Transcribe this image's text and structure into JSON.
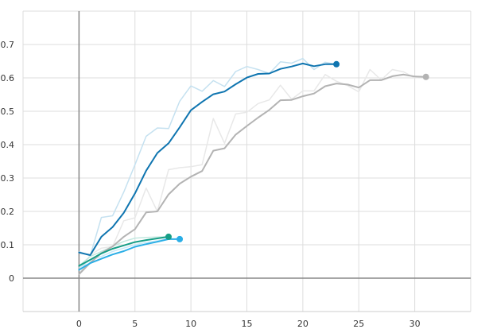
{
  "chart_data": {
    "type": "line",
    "title": "",
    "xlabel": "",
    "ylabel": "",
    "xlim": [
      -5,
      35
    ],
    "ylim": [
      -0.1,
      0.8
    ],
    "x_ticks": [
      0,
      5,
      10,
      15,
      20,
      25,
      30
    ],
    "y_ticks": [
      0,
      0.1,
      0.2,
      0.3,
      0.4,
      0.5,
      0.6,
      0.7
    ],
    "grid": true,
    "legend": "none",
    "series": [
      {
        "color": "#0f75b0",
        "raw_color": "#c5e1f0",
        "x": [
          0,
          1,
          2,
          3,
          4,
          5,
          6,
          7,
          8,
          9,
          10,
          11,
          12,
          13,
          14,
          15,
          16,
          17,
          18,
          19,
          20,
          21,
          22,
          23
        ],
        "values": [
          0.077,
          0.069,
          0.124,
          0.153,
          0.196,
          0.254,
          0.322,
          0.375,
          0.404,
          0.452,
          0.503,
          0.528,
          0.551,
          0.559,
          0.581,
          0.601,
          0.612,
          0.613,
          0.627,
          0.634,
          0.643,
          0.635,
          0.641,
          0.641
        ],
        "raw_values": [
          0.08,
          0.067,
          0.182,
          0.187,
          0.258,
          0.34,
          0.425,
          0.45,
          0.448,
          0.53,
          0.576,
          0.56,
          0.592,
          0.574,
          0.619,
          0.634,
          0.625,
          0.613,
          0.648,
          0.644,
          0.658,
          0.625,
          0.647,
          0.64
        ]
      },
      {
        "color": "#b3b3b3",
        "raw_color": "#e8e8e8",
        "x": [
          0,
          1,
          2,
          3,
          4,
          5,
          6,
          7,
          8,
          9,
          10,
          11,
          12,
          13,
          14,
          15,
          16,
          17,
          18,
          19,
          20,
          21,
          22,
          23,
          24,
          25,
          26,
          27,
          28,
          29,
          30,
          31
        ],
        "values": [
          0.012,
          0.046,
          0.075,
          0.095,
          0.124,
          0.147,
          0.197,
          0.2,
          0.251,
          0.283,
          0.304,
          0.321,
          0.382,
          0.389,
          0.43,
          0.456,
          0.481,
          0.504,
          0.533,
          0.534,
          0.545,
          0.553,
          0.575,
          0.583,
          0.58,
          0.571,
          0.593,
          0.593,
          0.605,
          0.61,
          0.604,
          0.603
        ],
        "raw_values": [
          0.01,
          0.07,
          0.09,
          0.095,
          0.172,
          0.181,
          0.27,
          0.2,
          0.325,
          0.331,
          0.334,
          0.34,
          0.478,
          0.404,
          0.492,
          0.497,
          0.523,
          0.534,
          0.578,
          0.536,
          0.561,
          0.561,
          0.61,
          0.59,
          0.577,
          0.558,
          0.625,
          0.594,
          0.625,
          0.618,
          0.6,
          0.603
        ]
      },
      {
        "color": "#169e86",
        "raw_color": "#c3e8e0",
        "x": [
          0,
          1,
          2,
          3,
          4,
          5,
          6,
          7,
          8
        ],
        "values": [
          0.037,
          0.055,
          0.074,
          0.088,
          0.098,
          0.108,
          0.114,
          0.119,
          0.124
        ],
        "raw_values": [
          0.037,
          0.065,
          0.08,
          0.095,
          0.11,
          0.12,
          0.122,
          0.123,
          0.124
        ]
      },
      {
        "color": "#2aaee6",
        "raw_color": "#c6e9f7",
        "x": [
          0,
          1,
          2,
          3,
          4,
          5,
          6,
          7,
          8,
          9
        ],
        "values": [
          0.025,
          0.045,
          0.058,
          0.071,
          0.081,
          0.094,
          0.102,
          0.109,
          0.117,
          0.117
        ],
        "raw_values": [
          0.03,
          0.055,
          0.065,
          0.08,
          0.09,
          0.1,
          0.107,
          0.112,
          0.118,
          0.117
        ]
      }
    ]
  }
}
